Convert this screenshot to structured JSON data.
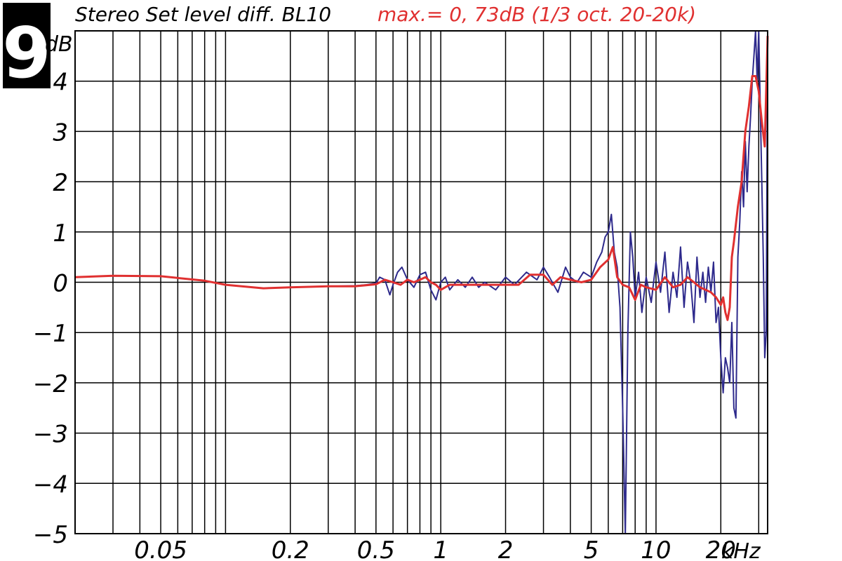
{
  "badge": {
    "number": "9"
  },
  "chart_data": {
    "type": "line",
    "title": "Stereo Set level diff. BL10",
    "subtitle": "max.= 0, 73dB (1/3 oct. 20-20k)",
    "ylabel": "dB",
    "xunit": "kHz",
    "xscale": "log",
    "xlim": [
      0.02,
      33
    ],
    "ylim": [
      -5,
      5
    ],
    "grid": true,
    "y_ticks": [
      -5,
      -4,
      -3,
      -2,
      -1,
      0,
      1,
      2,
      3,
      4
    ],
    "y_tick_labels": [
      "−5",
      "−4",
      "−3",
      "−2",
      "−1",
      "0",
      "1",
      "2",
      "3",
      "4"
    ],
    "x_ticks": [
      0.05,
      0.2,
      0.5,
      1,
      2,
      5,
      10,
      20
    ],
    "x_tick_labels": [
      "0.05",
      "0.2",
      "0.5",
      "1",
      "2",
      "5",
      "10",
      "20"
    ],
    "x_gridlines": [
      0.03,
      0.04,
      0.05,
      0.06,
      0.07,
      0.08,
      0.09,
      0.1,
      0.2,
      0.3,
      0.4,
      0.5,
      0.6,
      0.7,
      0.8,
      0.9,
      1,
      2,
      3,
      4,
      5,
      6,
      7,
      8,
      9,
      10,
      20,
      30
    ],
    "colors": {
      "raw": "#2e2a8c",
      "smoothed": "#e03030",
      "subtitle": "#e03030",
      "title": "#000000",
      "badge_bg": "#000000",
      "grid": "#000000"
    },
    "series": [
      {
        "key": "raw",
        "x": [
          0.02,
          0.03,
          0.05,
          0.08,
          0.1,
          0.15,
          0.2,
          0.3,
          0.4,
          0.45,
          0.5,
          0.52,
          0.55,
          0.58,
          0.6,
          0.63,
          0.66,
          0.7,
          0.75,
          0.8,
          0.85,
          0.9,
          0.95,
          1,
          1.05,
          1.1,
          1.2,
          1.3,
          1.4,
          1.5,
          1.6,
          1.8,
          2,
          2.2,
          2.5,
          2.8,
          3,
          3.2,
          3.5,
          3.8,
          4,
          4.3,
          4.6,
          5,
          5.3,
          5.6,
          5.8,
          6,
          6.2,
          6.4,
          6.6,
          6.8,
          7,
          7.2,
          7.4,
          7.6,
          7.8,
          8,
          8.3,
          8.6,
          9,
          9.5,
          10,
          10.5,
          11,
          11.5,
          12,
          12.5,
          13,
          13.5,
          14,
          14.5,
          15,
          15.5,
          16,
          16.5,
          17,
          17.5,
          18,
          18.5,
          19,
          19.5,
          20,
          20.5,
          21,
          21.5,
          22,
          22.5,
          23,
          23.5,
          24,
          24.5,
          25,
          25.5,
          26,
          26.5,
          27,
          27.5,
          28,
          28.5,
          29,
          29.5,
          30,
          30.5,
          31,
          31.5,
          32,
          32.5,
          33
        ],
        "y": [
          0.1,
          0.13,
          0.12,
          0.03,
          -0.05,
          -0.12,
          -0.1,
          -0.08,
          -0.07,
          -0.05,
          -0.02,
          0.1,
          0.05,
          -0.25,
          -0.05,
          0.2,
          0.3,
          0.05,
          -0.1,
          0.15,
          0.2,
          -0.15,
          -0.35,
          0.0,
          0.1,
          -0.15,
          0.05,
          -0.1,
          0.1,
          -0.1,
          0.0,
          -0.15,
          0.1,
          -0.05,
          0.2,
          0.05,
          0.3,
          0.1,
          -0.2,
          0.3,
          0.1,
          0.0,
          0.2,
          0.1,
          0.4,
          0.6,
          0.9,
          1.0,
          1.35,
          0.6,
          0.3,
          -0.5,
          -2.5,
          -5.0,
          -1.0,
          1.0,
          0.5,
          -0.3,
          0.2,
          -0.6,
          0.1,
          -0.4,
          0.4,
          -0.2,
          0.6,
          -0.6,
          0.2,
          -0.3,
          0.7,
          -0.5,
          0.4,
          0.0,
          -0.8,
          0.5,
          -0.3,
          0.2,
          -0.4,
          0.3,
          -0.2,
          0.4,
          -0.8,
          -0.5,
          -1.5,
          -2.2,
          -1.5,
          -1.7,
          -2.0,
          -0.8,
          -2.5,
          -2.7,
          0.5,
          1.2,
          2.2,
          1.5,
          2.8,
          1.8,
          2.7,
          3.3,
          4.0,
          4.5,
          5.0,
          4.0,
          5.0,
          3.5,
          2.0,
          0.5,
          -1.5,
          -1.0,
          4.9
        ]
      },
      {
        "key": "smoothed",
        "x": [
          0.02,
          0.03,
          0.05,
          0.08,
          0.1,
          0.15,
          0.2,
          0.3,
          0.4,
          0.45,
          0.5,
          0.55,
          0.6,
          0.65,
          0.7,
          0.75,
          0.8,
          0.85,
          0.9,
          0.95,
          1,
          1.1,
          1.2,
          1.3,
          1.5,
          1.7,
          2,
          2.3,
          2.6,
          3,
          3.3,
          3.6,
          4,
          4.5,
          5,
          5.5,
          6,
          6.3,
          6.6,
          7,
          7.5,
          8,
          8.5,
          9,
          10,
          11,
          12,
          13,
          14,
          15,
          16,
          17,
          18,
          19,
          20,
          20.5,
          21,
          21.5,
          22,
          22.5,
          23,
          24,
          25,
          26,
          27,
          28,
          29,
          30,
          31,
          32,
          33
        ],
        "y": [
          0.1,
          0.13,
          0.12,
          0.03,
          -0.05,
          -0.12,
          -0.1,
          -0.08,
          -0.08,
          -0.06,
          -0.04,
          0.05,
          0.0,
          -0.05,
          0.05,
          0.0,
          0.05,
          0.1,
          0.0,
          -0.05,
          -0.15,
          -0.05,
          -0.05,
          -0.05,
          -0.05,
          -0.05,
          -0.05,
          -0.05,
          0.15,
          0.15,
          -0.05,
          0.1,
          0.05,
          0.0,
          0.05,
          0.3,
          0.45,
          0.7,
          0.1,
          -0.05,
          -0.1,
          -0.35,
          -0.05,
          -0.1,
          -0.15,
          0.1,
          -0.1,
          -0.05,
          0.1,
          0.0,
          -0.1,
          -0.15,
          -0.2,
          -0.3,
          -0.45,
          -0.3,
          -0.6,
          -0.75,
          -0.5,
          0.5,
          0.8,
          1.5,
          2.0,
          3.0,
          3.5,
          4.1,
          4.1,
          3.8,
          3.2,
          2.7,
          4.9
        ]
      }
    ]
  }
}
